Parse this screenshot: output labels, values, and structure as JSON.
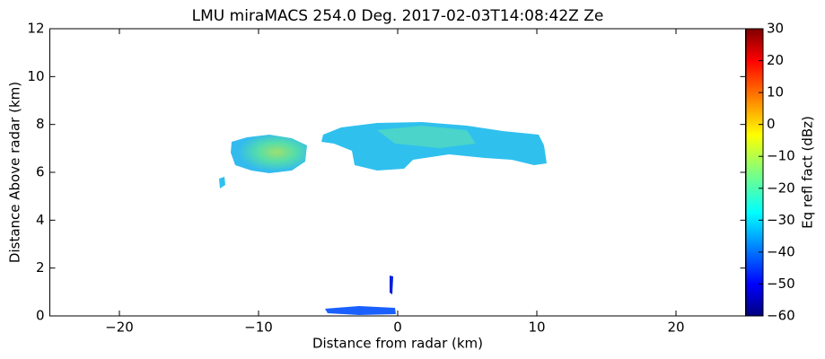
{
  "chart_data": {
    "type": "heatmap",
    "title": "LMU miraMACS 254.0 Deg. 2017-02-03T14:08:42Z  Ze",
    "x_label": "Distance from radar (km)",
    "y_label": "Distance Above radar  (km)",
    "colorbar_label": "Eq refl fact (dBz)",
    "colormap": "jet",
    "xlim": [
      -25,
      25
    ],
    "xticks": [
      {
        "value": -20,
        "label": "−20"
      },
      {
        "value": -10,
        "label": "−10"
      },
      0,
      10,
      20
    ],
    "ylim": [
      0,
      12
    ],
    "yticks": [
      0,
      2,
      4,
      6,
      8,
      10,
      12
    ],
    "clim": [
      -60,
      30
    ],
    "cticks": [
      {
        "value": -60,
        "label": "−60"
      },
      {
        "value": -50,
        "label": "−50"
      },
      {
        "value": -40,
        "label": "−40"
      },
      {
        "value": -30,
        "label": "−30"
      },
      {
        "value": -20,
        "label": "−20"
      },
      {
        "value": -10,
        "label": "−10"
      },
      0,
      10,
      20,
      30
    ]
  }
}
